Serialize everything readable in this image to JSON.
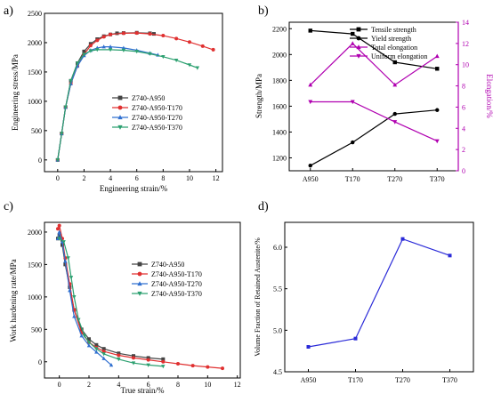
{
  "chart_data": [
    {
      "panel_label": "a)",
      "type": "line",
      "xlabel": "Engineering strain/%",
      "ylabel": "Engineering stress/MPa",
      "xlim": [
        -1,
        12.5
      ],
      "ylim": [
        -200,
        2500
      ],
      "xticks": [
        0,
        2,
        4,
        6,
        8,
        10,
        12
      ],
      "yticks": [
        0,
        500,
        1000,
        1500,
        2000,
        2500
      ],
      "legend_position": "center-left",
      "series": [
        {
          "name": "Z740-A950",
          "color": "#444444",
          "marker": "square",
          "x": [
            0,
            0.3,
            0.6,
            1.0,
            1.5,
            2.0,
            2.5,
            3.0,
            3.5,
            4.0,
            4.5,
            5.0,
            6.0,
            7.0,
            7.3
          ],
          "y": [
            0,
            450,
            900,
            1350,
            1650,
            1850,
            1980,
            2060,
            2110,
            2140,
            2160,
            2165,
            2170,
            2160,
            2150
          ]
        },
        {
          "name": "Z740-A950-T170",
          "color": "#e03030",
          "marker": "circle",
          "x": [
            0,
            0.3,
            0.6,
            1.0,
            1.5,
            2.0,
            2.5,
            3.0,
            3.5,
            4.0,
            5.0,
            6.0,
            7.0,
            8.0,
            9.0,
            10.0,
            11.0,
            11.8
          ],
          "y": [
            0,
            450,
            900,
            1300,
            1600,
            1800,
            1950,
            2040,
            2100,
            2140,
            2160,
            2165,
            2150,
            2120,
            2070,
            2010,
            1940,
            1880
          ]
        },
        {
          "name": "Z740-A950-T270",
          "color": "#3070d0",
          "marker": "triangle",
          "x": [
            0,
            0.3,
            0.6,
            1.0,
            1.5,
            2.0,
            2.5,
            3.0,
            3.5,
            4.0,
            5.0,
            6.0,
            7.0,
            7.6
          ],
          "y": [
            0,
            450,
            900,
            1300,
            1600,
            1780,
            1870,
            1910,
            1930,
            1930,
            1910,
            1870,
            1820,
            1790
          ]
        },
        {
          "name": "Z740-A950-T370",
          "color": "#2ca070",
          "marker": "triangle-down",
          "x": [
            0,
            0.3,
            0.6,
            1.0,
            1.5,
            2.0,
            2.5,
            3.0,
            4.0,
            5.0,
            6.0,
            7.0,
            8.0,
            9.0,
            10.0,
            10.6
          ],
          "y": [
            0,
            450,
            900,
            1350,
            1650,
            1800,
            1860,
            1880,
            1880,
            1870,
            1850,
            1810,
            1760,
            1700,
            1620,
            1570
          ]
        }
      ]
    },
    {
      "panel_label": "b)",
      "type": "line",
      "categories": [
        "A950",
        "T170",
        "T270",
        "T370"
      ],
      "ylabel": "Strength/MPa",
      "y2label": "Elongation/%",
      "ylim": [
        1100,
        2250
      ],
      "y2lim": [
        0,
        14
      ],
      "yticks": [
        1200,
        1400,
        1600,
        1800,
        2000,
        2200
      ],
      "y2ticks": [
        0,
        2,
        4,
        6,
        8,
        10,
        12,
        14
      ],
      "legend_position": "top-right",
      "series": [
        {
          "name": "Tensile strength",
          "axis": "left",
          "color": "#000000",
          "marker": "square",
          "values": [
            2185,
            2160,
            1940,
            1890
          ]
        },
        {
          "name": "Yield strength",
          "axis": "left",
          "color": "#000000",
          "marker": "circle",
          "values": [
            1140,
            1320,
            1540,
            1570
          ]
        },
        {
          "name": "Total elongation",
          "axis": "right",
          "color": "#b000b0",
          "marker": "triangle",
          "values": [
            8.1,
            12.0,
            8.1,
            10.8
          ]
        },
        {
          "name": "Uniform elongation",
          "axis": "right",
          "color": "#b000b0",
          "marker": "triangle-down",
          "values": [
            6.5,
            6.5,
            4.6,
            2.8
          ]
        }
      ]
    },
    {
      "panel_label": "c)",
      "type": "line",
      "xlabel": "True strain/%",
      "ylabel": "Work hardening rate/MPa",
      "xlim": [
        -1,
        12.2
      ],
      "ylim": [
        -250,
        2150
      ],
      "xticks": [
        0,
        2,
        4,
        6,
        8,
        10,
        12
      ],
      "yticks": [
        0,
        500,
        1000,
        1500,
        2000
      ],
      "legend_position": "top-right",
      "series": [
        {
          "name": "Z740-A950",
          "color": "#444444",
          "marker": "square",
          "x": [
            -0.1,
            0.0,
            0.2,
            0.4,
            0.7,
            1.0,
            1.5,
            2.0,
            2.5,
            3.0,
            4.0,
            5.0,
            6.0,
            7.0
          ],
          "y": [
            1900,
            1950,
            1800,
            1500,
            1150,
            800,
            500,
            350,
            260,
            200,
            130,
            90,
            60,
            40
          ]
        },
        {
          "name": "Z740-A950-T170",
          "color": "#e03030",
          "marker": "circle",
          "x": [
            -0.1,
            0.0,
            0.2,
            0.4,
            0.7,
            1.0,
            1.5,
            2.0,
            2.5,
            3.0,
            4.0,
            5.0,
            6.0,
            7.0,
            8.0,
            9.0,
            10.0,
            11.0
          ],
          "y": [
            2050,
            2100,
            1900,
            1600,
            1200,
            800,
            450,
            300,
            220,
            160,
            100,
            60,
            30,
            0,
            -30,
            -60,
            -80,
            -100
          ]
        },
        {
          "name": "Z740-A950-T270",
          "color": "#3070d0",
          "marker": "triangle",
          "x": [
            -0.1,
            0.0,
            0.2,
            0.4,
            0.7,
            1.0,
            1.5,
            2.0,
            2.5,
            3.0,
            3.5
          ],
          "y": [
            1900,
            2000,
            1850,
            1550,
            1100,
            700,
            400,
            250,
            150,
            50,
            -50
          ]
        },
        {
          "name": "Z740-A950-T370",
          "color": "#2ca070",
          "marker": "triangle-down",
          "x": [
            0.0,
            0.3,
            0.6,
            0.8,
            1.0,
            1.3,
            1.7,
            2.0,
            2.5,
            3.0,
            4.0,
            5.0,
            6.0,
            7.0
          ],
          "y": [
            1900,
            1850,
            1600,
            1300,
            1000,
            650,
            400,
            300,
            200,
            120,
            40,
            -20,
            -50,
            -70
          ]
        }
      ]
    },
    {
      "panel_label": "d)",
      "type": "line",
      "categories": [
        "A950",
        "T170",
        "T270",
        "T370"
      ],
      "ylabel": "Volume Fraction of Retained Austenite/%",
      "ylim": [
        4.5,
        6.3
      ],
      "yticks": [
        4.5,
        5.0,
        5.5,
        6.0
      ],
      "series": [
        {
          "color": "#2a2ad8",
          "marker": "square",
          "values": [
            4.8,
            4.9,
            6.1,
            5.9
          ]
        }
      ]
    }
  ]
}
